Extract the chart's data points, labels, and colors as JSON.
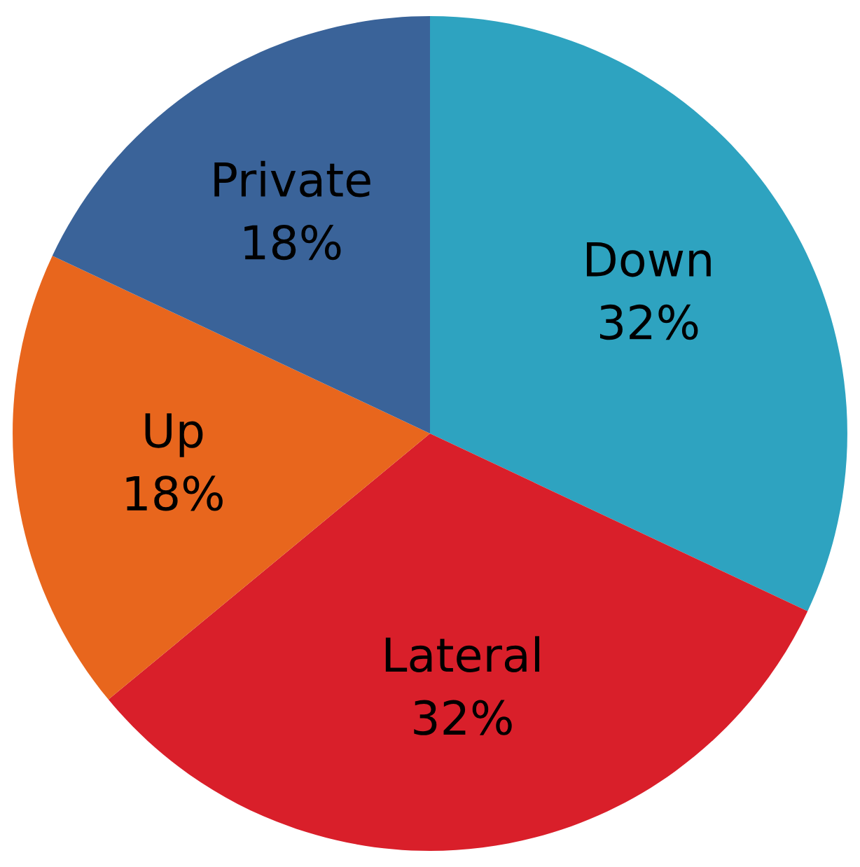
{
  "chart_data": {
    "type": "pie",
    "categories": [
      "Down",
      "Lateral",
      "Up",
      "Private"
    ],
    "values": [
      32,
      32,
      18,
      18
    ],
    "value_labels": [
      "32%",
      "32%",
      "18%",
      "18%"
    ],
    "colors": [
      "#2ea3c0",
      "#d91f2a",
      "#e8661d",
      "#3a6399"
    ]
  }
}
